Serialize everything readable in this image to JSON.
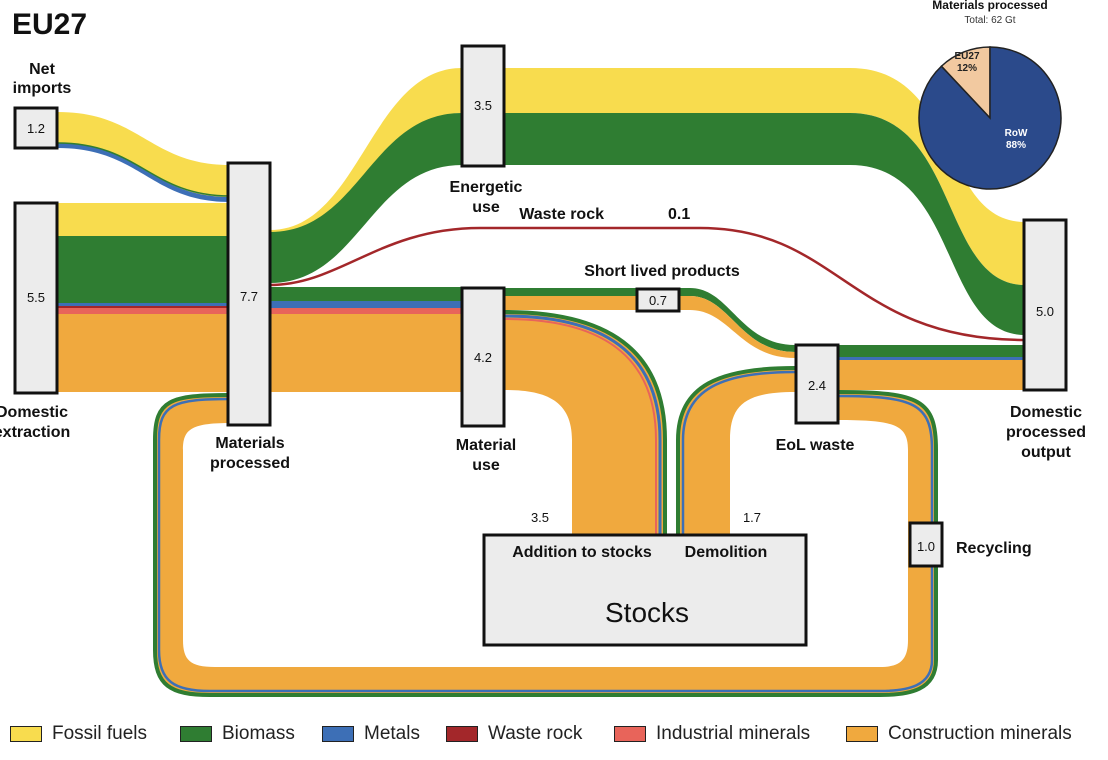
{
  "diagram": {
    "title": "EU27",
    "nodes": {
      "net_imports": {
        "label_line1": "Net",
        "label_line2": "imports",
        "value": "1.2"
      },
      "domestic_extraction": {
        "label_line1": "Domestic",
        "label_line2": "extraction",
        "value": "5.5"
      },
      "materials_processed": {
        "label_line1": "Materials",
        "label_line2": "processed",
        "value": "7.7"
      },
      "energetic_use": {
        "label_line1": "Energetic",
        "label_line2": "use",
        "value": "3.5"
      },
      "material_use": {
        "label_line1": "Material",
        "label_line2": "use",
        "value": "4.2"
      },
      "short_lived": {
        "label": "Short lived products",
        "value": "0.7"
      },
      "eol_waste": {
        "label": "EoL waste",
        "value": "2.4"
      },
      "domestic_output": {
        "label_line1": "Domestic",
        "label_line2": "processed",
        "label_line3": "output",
        "value": "5.0"
      },
      "recycling": {
        "label": "Recycling",
        "value": "1.0"
      },
      "stocks": {
        "label": "Stocks",
        "addition_label": "Addition to stocks",
        "addition_value": "3.5",
        "demolition_label": "Demolition",
        "demolition_value": "1.7"
      }
    },
    "waste_rock": {
      "label": "Waste rock",
      "value": "0.1"
    }
  },
  "inset_pie": {
    "title": "Materials processed",
    "subtitle": "Total: 62 Gt",
    "slices": [
      {
        "label": "EU27",
        "percent_text": "12%",
        "value": 12,
        "color": "#f2c9a0"
      },
      {
        "label": "RoW",
        "percent_text": "88%",
        "value": 88,
        "color": "#2b4a8b"
      }
    ]
  },
  "legend": [
    {
      "label": "Fossil fuels",
      "color": "#f8dc4e"
    },
    {
      "label": "Biomass",
      "color": "#2f7d32"
    },
    {
      "label": "Metals",
      "color": "#3d6fb6"
    },
    {
      "label": "Waste rock",
      "color": "#a3272a"
    },
    {
      "label": "Industrial minerals",
      "color": "#e8645a"
    },
    {
      "label": "Construction minerals",
      "color": "#f0a93e"
    }
  ]
}
